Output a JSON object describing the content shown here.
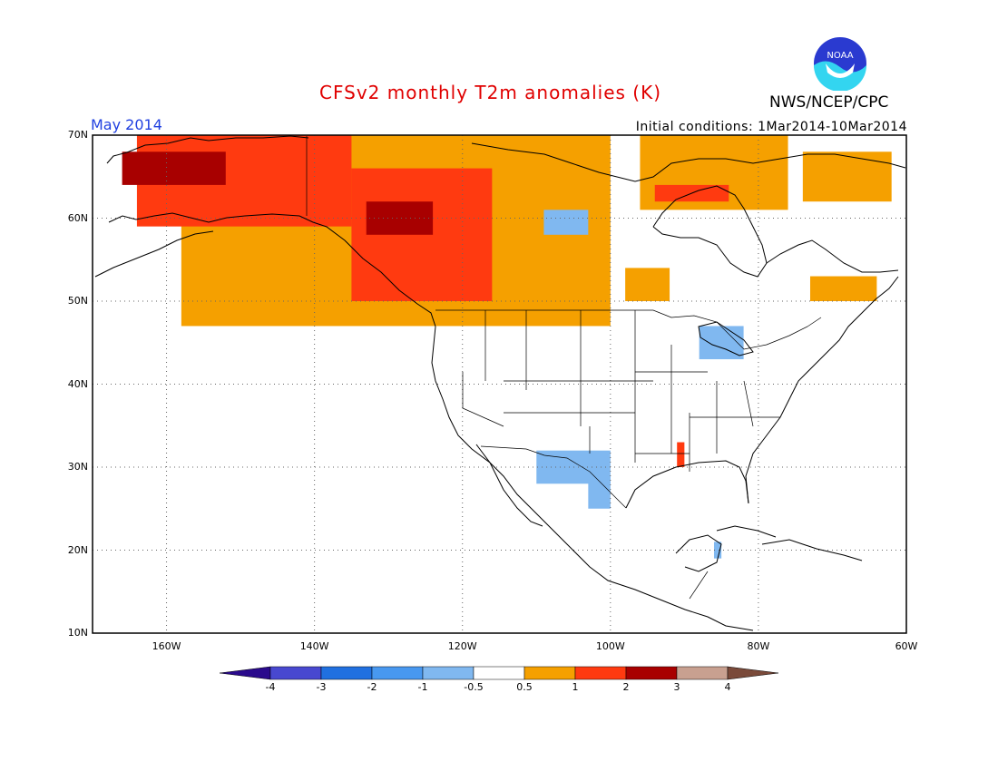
{
  "header": {
    "title": "CFSv2 monthly T2m anomalies (K)",
    "valid_month": "May 2014",
    "initial_conditions": "Initial conditions: 1Mar2014-10Mar2014",
    "agency": "NWS/NCEP/CPC",
    "logo_text": "NOAA"
  },
  "map": {
    "lat_range": [
      10,
      70
    ],
    "lon_range": [
      -170,
      -60
    ],
    "lat_ticks": [
      {
        "value": 70,
        "label": "70N"
      },
      {
        "value": 60,
        "label": "60N"
      },
      {
        "value": 50,
        "label": "50N"
      },
      {
        "value": 40,
        "label": "40N"
      },
      {
        "value": 30,
        "label": "30N"
      },
      {
        "value": 20,
        "label": "20N"
      },
      {
        "value": 10,
        "label": "10N"
      }
    ],
    "lon_ticks": [
      {
        "value": -160,
        "label": "160W"
      },
      {
        "value": -140,
        "label": "140W"
      },
      {
        "value": -120,
        "label": "120W"
      },
      {
        "value": -100,
        "label": "100W"
      },
      {
        "value": -80,
        "label": "80W"
      },
      {
        "value": -60,
        "label": "60W"
      }
    ],
    "anomaly_regions": [
      {
        "level": "0.5-1",
        "color": "#f5a000",
        "lon": [
          -158,
          -100
        ],
        "lat": [
          47,
          70
        ]
      },
      {
        "level": "1-2",
        "color": "#ff3a10",
        "lon": [
          -164,
          -135
        ],
        "lat": [
          59,
          70
        ]
      },
      {
        "level": "1-2",
        "color": "#ff3a10",
        "lon": [
          -135,
          -116
        ],
        "lat": [
          50,
          66
        ]
      },
      {
        "level": "2-3",
        "color": "#a80000",
        "lon": [
          -166,
          -152
        ],
        "lat": [
          64,
          68
        ]
      },
      {
        "level": "2-3",
        "color": "#a80000",
        "lon": [
          -133,
          -124
        ],
        "lat": [
          58,
          62
        ]
      },
      {
        "level": "0.5-1",
        "color": "#f5a000",
        "lon": [
          -96,
          -76
        ],
        "lat": [
          61,
          70
        ]
      },
      {
        "level": "1-2",
        "color": "#ff3a10",
        "lon": [
          -94,
          -84
        ],
        "lat": [
          62,
          64
        ]
      },
      {
        "level": "0.5-1",
        "color": "#f5a000",
        "lon": [
          -74,
          -62
        ],
        "lat": [
          62,
          68
        ]
      },
      {
        "level": "0.5-1",
        "color": "#f5a000",
        "lon": [
          -73,
          -64
        ],
        "lat": [
          50,
          53
        ]
      },
      {
        "level": "0.5-1",
        "color": "#f5a000",
        "lon": [
          -98,
          -92
        ],
        "lat": [
          50,
          54
        ]
      },
      {
        "level": "-1--0.5",
        "color": "#80b8f0",
        "lon": [
          -109,
          -103
        ],
        "lat": [
          58,
          61
        ]
      },
      {
        "level": "-1--0.5",
        "color": "#80b8f0",
        "lon": [
          -88,
          -82
        ],
        "lat": [
          43,
          47
        ]
      },
      {
        "level": "-1--0.5",
        "color": "#80b8f0",
        "lon": [
          -110,
          -100
        ],
        "lat": [
          28,
          32
        ]
      },
      {
        "level": "-1--0.5",
        "color": "#80b8f0",
        "lon": [
          -103,
          -100
        ],
        "lat": [
          25,
          29
        ]
      },
      {
        "level": "1-2",
        "color": "#ff3a10",
        "lon": [
          -91,
          -90
        ],
        "lat": [
          30,
          33
        ]
      },
      {
        "level": "-1--0.5",
        "color": "#80b8f0",
        "lon": [
          -86,
          -85
        ],
        "lat": [
          19,
          21
        ]
      }
    ]
  },
  "colorbar": {
    "ticks": [
      "-4",
      "-3",
      "-2",
      "-1",
      "-0.5",
      "0.5",
      "1",
      "2",
      "3",
      "4"
    ],
    "colors": [
      "#2a0a8c",
      "#4848d0",
      "#2070e0",
      "#4898f0",
      "#80b8f0",
      "#ffffff",
      "#f5a000",
      "#ff3a10",
      "#a80000",
      "#c8a090",
      "#7a4a3a"
    ]
  }
}
